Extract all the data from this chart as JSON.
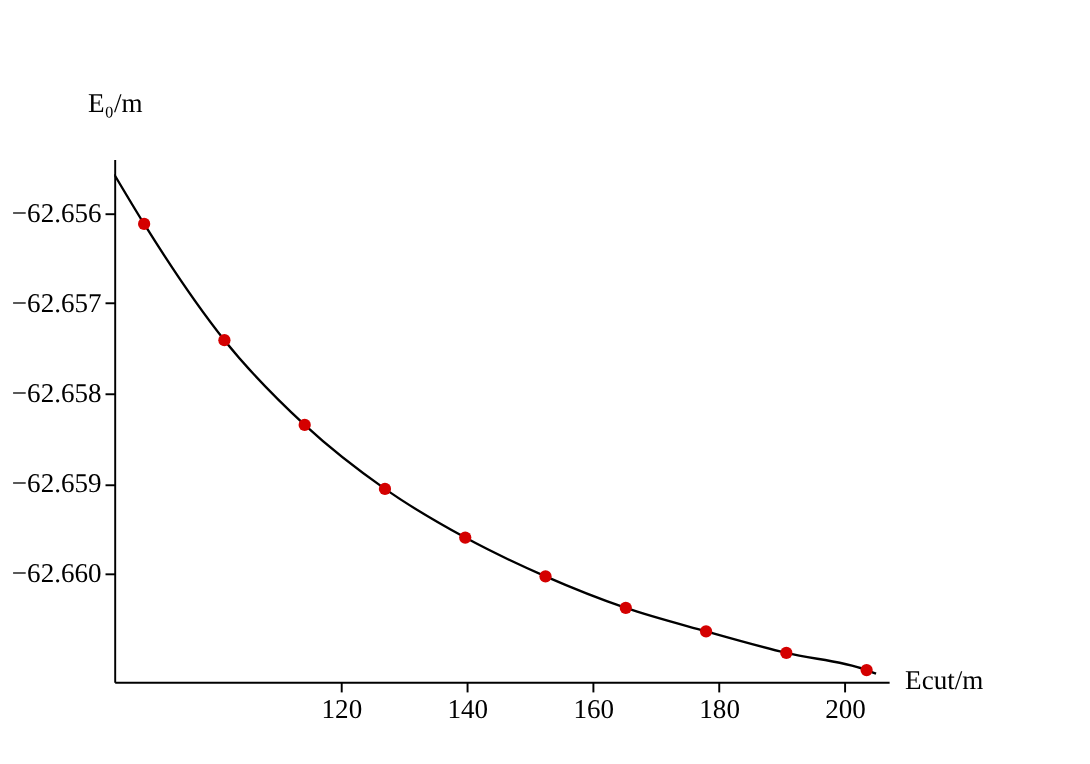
{
  "chart_data": {
    "type": "scatter",
    "xlabel": "Ecut/m",
    "ylabel": "E₀/m",
    "x": [
      88.75,
      101.5,
      114.25,
      127,
      139.75,
      152.5,
      165.25,
      178,
      190.75,
      203.5
    ],
    "series": [
      {
        "color": "#d40000",
        "marker": "circle",
        "values": [
          -62.65612,
          -62.65741,
          -62.65835,
          -62.65906,
          -62.6596,
          -62.66003,
          -62.66038,
          -62.66064,
          -62.66088,
          -62.66107
        ]
      },
      {
        "type": "line",
        "color": "#000000",
        "line_style": "solid",
        "x": [
          84,
          88.75,
          101.5,
          114.25,
          127,
          139.75,
          152.5,
          165.25,
          178,
          190.75,
          203.5,
          205
        ],
        "values": [
          -62.65557,
          -62.65612,
          -62.65741,
          -62.65835,
          -62.65906,
          -62.6596,
          -62.66003,
          -62.66038,
          -62.66064,
          -62.66088,
          -62.66107,
          -62.66111
        ]
      }
    ],
    "xlim": [
      84,
      207
    ],
    "ylim": [
      -62.6612,
      -62.6554
    ],
    "xticks": [
      120,
      140,
      160,
      180,
      200
    ],
    "yticks": [
      -62.656,
      -62.657,
      -62.658,
      -62.659,
      {
        "value": -62.66,
        "label": "−62.660"
      }
    ],
    "grid": false
  }
}
